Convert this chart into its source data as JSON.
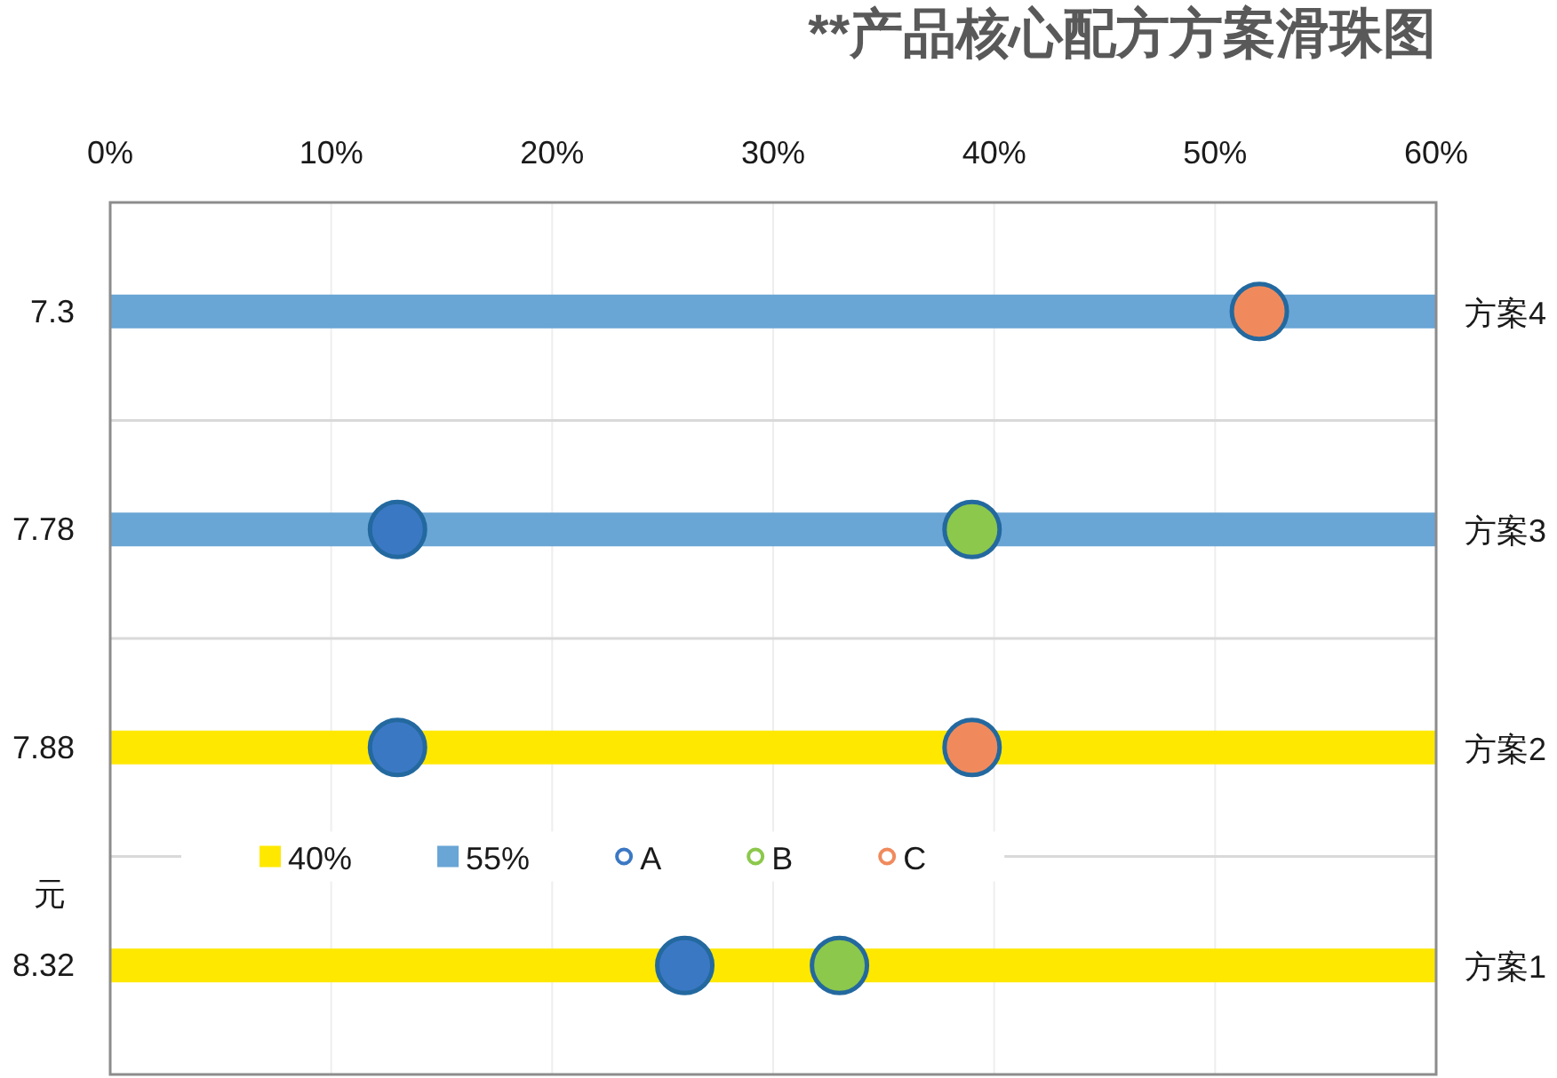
{
  "chart_data": {
    "type": "bar",
    "orientation": "horizontal",
    "title": "**产品核心配方方案滑珠图",
    "ylabel": "元",
    "categories": [
      "7.3",
      "7.78",
      "7.88",
      "8.32"
    ],
    "y2_categories": [
      "方案4",
      "方案3",
      "方案2",
      "方案1"
    ],
    "series": [
      {
        "name": "40%",
        "color": "#fee800",
        "values": [
          null,
          null,
          60,
          60
        ]
      },
      {
        "name": "55%",
        "color": "#69a5d5",
        "values": [
          60,
          60,
          null,
          null
        ]
      },
      {
        "name": "A",
        "type": "scatter",
        "marker": "circle",
        "color": "#3b78c4",
        "values": [
          null,
          13,
          13,
          26
        ]
      },
      {
        "name": "B",
        "type": "scatter",
        "marker": "circle",
        "color": "#8cc84b",
        "values": [
          null,
          39,
          null,
          33
        ]
      },
      {
        "name": "C",
        "type": "scatter",
        "marker": "circle",
        "color": "#f08a5d",
        "values": [
          52,
          null,
          39,
          null
        ]
      }
    ],
    "xlim": [
      0,
      60
    ],
    "xticks": [
      {
        "value": 0,
        "label": "0%"
      },
      {
        "value": 10,
        "label": "10%"
      },
      {
        "value": 20,
        "label": "20%"
      },
      {
        "value": 30,
        "label": "30%"
      },
      {
        "value": 40,
        "label": "40%"
      },
      {
        "value": 50,
        "label": "50%"
      },
      {
        "value": 60,
        "label": "60%"
      }
    ],
    "grid": true,
    "legend": "bottom left"
  }
}
